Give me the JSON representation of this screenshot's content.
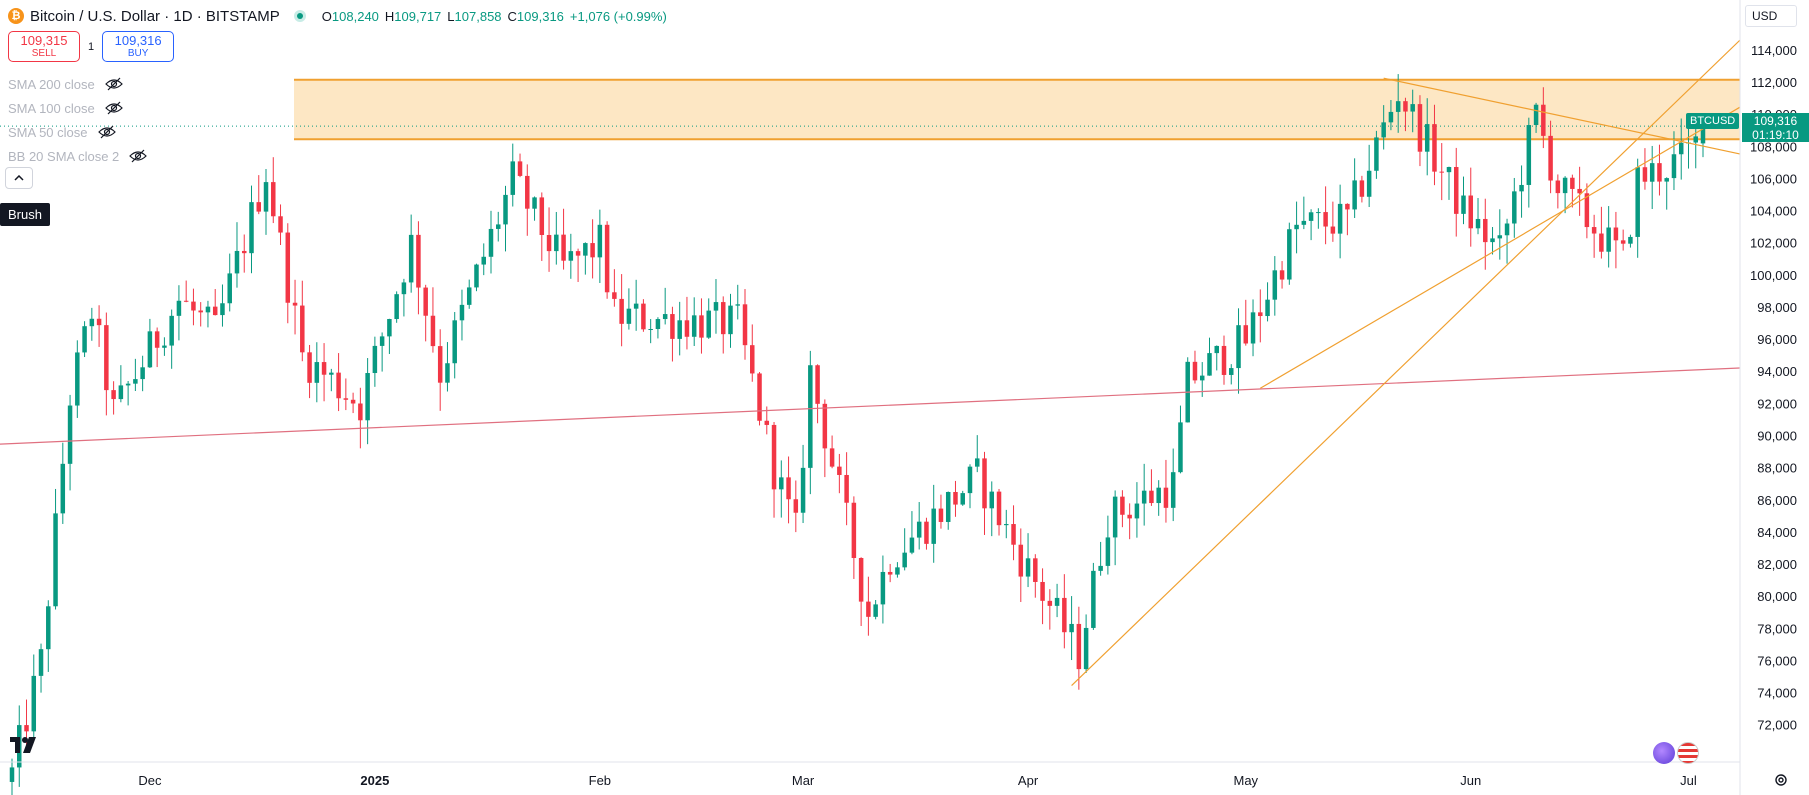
{
  "header": {
    "symbol_title": "Bitcoin / U.S. Dollar · 1D · BITSTAMP",
    "coin_icon": "bitcoin-icon",
    "ohlc": {
      "o_label": "O",
      "o": "108,240",
      "h_label": "H",
      "h": "109,717",
      "l_label": "L",
      "l": "107,858",
      "c_label": "C",
      "c": "109,316",
      "change": "+1,076 (+0.99%)"
    }
  },
  "trade": {
    "sell_price": "109,315",
    "sell_label": "SELL",
    "spread": "1",
    "buy_price": "109,316",
    "buy_label": "BUY"
  },
  "indicators": [
    {
      "label": "SMA 200 close",
      "icon": "eye-off-icon"
    },
    {
      "label": "SMA 100 close",
      "icon": "eye-off-icon"
    },
    {
      "label": "SMA 50 close",
      "icon": "eye-off-icon"
    },
    {
      "label": "BB 20 SMA close 2",
      "icon": "eye-off-icon"
    }
  ],
  "brush_tooltip": "Brush",
  "currency": "USD",
  "price_tag": {
    "symbol": "BTCUSD",
    "price": "109,316",
    "countdown": "01:19:10"
  },
  "colors": {
    "up": "#089981",
    "down": "#f23645",
    "drawing": "#f0a030",
    "zone_fill": "#fde7c4",
    "trend_red": "#e07080"
  },
  "chart_data": {
    "type": "candlestick",
    "y_ticks": [
      "114,000",
      "112,000",
      "110,000",
      "108,000",
      "106,000",
      "104,000",
      "102,000",
      "100,000",
      "98,000",
      "96,000",
      "94,000",
      "92,000",
      "90,000",
      "88,000",
      "86,000",
      "84,000",
      "82,000",
      "80,000",
      "78,000",
      "76,000",
      "74,000",
      "72,000"
    ],
    "ylim": [
      70800,
      114800
    ],
    "x_labels": [
      "Dec",
      "2025",
      "Feb",
      "Mar",
      "Apr",
      "May",
      "Jun",
      "Jul"
    ],
    "start_date": "2024-11-12",
    "end_date": "2025-07-03",
    "anchors": [
      {
        "date": "2024-11-12",
        "price": 69000
      },
      {
        "date": "2024-11-16",
        "price": 76000
      },
      {
        "date": "2024-11-20",
        "price": 92500
      },
      {
        "date": "2024-11-23",
        "price": 97800
      },
      {
        "date": "2024-11-26",
        "price": 91500
      },
      {
        "date": "2024-12-05",
        "price": 98500
      },
      {
        "date": "2024-12-10",
        "price": 96500
      },
      {
        "date": "2024-12-17",
        "price": 106500
      },
      {
        "date": "2024-12-22",
        "price": 95000
      },
      {
        "date": "2024-12-30",
        "price": 92000
      },
      {
        "date": "2025-01-06",
        "price": 102000
      },
      {
        "date": "2025-01-10",
        "price": 94000
      },
      {
        "date": "2025-01-20",
        "price": 106000
      },
      {
        "date": "2025-01-27",
        "price": 100500
      },
      {
        "date": "2025-02-01",
        "price": 102000
      },
      {
        "date": "2025-02-03",
        "price": 97500
      },
      {
        "date": "2025-02-20",
        "price": 97000
      },
      {
        "date": "2025-02-25",
        "price": 88000
      },
      {
        "date": "2025-02-28",
        "price": 84000
      },
      {
        "date": "2025-03-02",
        "price": 94000
      },
      {
        "date": "2025-03-10",
        "price": 79000
      },
      {
        "date": "2025-03-13",
        "price": 82500
      },
      {
        "date": "2025-03-25",
        "price": 87500
      },
      {
        "date": "2025-03-31",
        "price": 82500
      },
      {
        "date": "2025-04-08",
        "price": 76500
      },
      {
        "date": "2025-04-12",
        "price": 85000
      },
      {
        "date": "2025-04-21",
        "price": 87000
      },
      {
        "date": "2025-04-23",
        "price": 93500
      },
      {
        "date": "2025-05-01",
        "price": 96000
      },
      {
        "date": "2025-05-08",
        "price": 103000
      },
      {
        "date": "2025-05-15",
        "price": 103500
      },
      {
        "date": "2025-05-22",
        "price": 111500
      },
      {
        "date": "2025-05-31",
        "price": 104000
      },
      {
        "date": "2025-06-05",
        "price": 101500
      },
      {
        "date": "2025-06-10",
        "price": 110000
      },
      {
        "date": "2025-06-13",
        "price": 105500
      },
      {
        "date": "2025-06-22",
        "price": 101000
      },
      {
        "date": "2025-06-24",
        "price": 106000
      },
      {
        "date": "2025-06-30",
        "price": 107200
      },
      {
        "date": "2025-07-02",
        "price": 108200
      },
      {
        "date": "2025-07-03",
        "price": 109316
      }
    ],
    "drawings": {
      "zone": {
        "high": 112200,
        "low": 108500
      },
      "red_trend": [
        {
          "date": "2024-11-09",
          "price": 89500
        },
        {
          "date": "2025-07-10",
          "price": 94300
        }
      ],
      "orange_support_1": [
        {
          "date": "2025-04-07",
          "price": 74500
        },
        {
          "date": "2025-07-10",
          "price": 115500
        }
      ],
      "orange_support_2": [
        {
          "date": "2025-05-03",
          "price": 93000
        },
        {
          "date": "2025-07-10",
          "price": 111000
        }
      ],
      "orange_resistance": [
        {
          "date": "2025-05-20",
          "price": 112300
        },
        {
          "date": "2025-07-10",
          "price": 107400
        }
      ]
    }
  }
}
